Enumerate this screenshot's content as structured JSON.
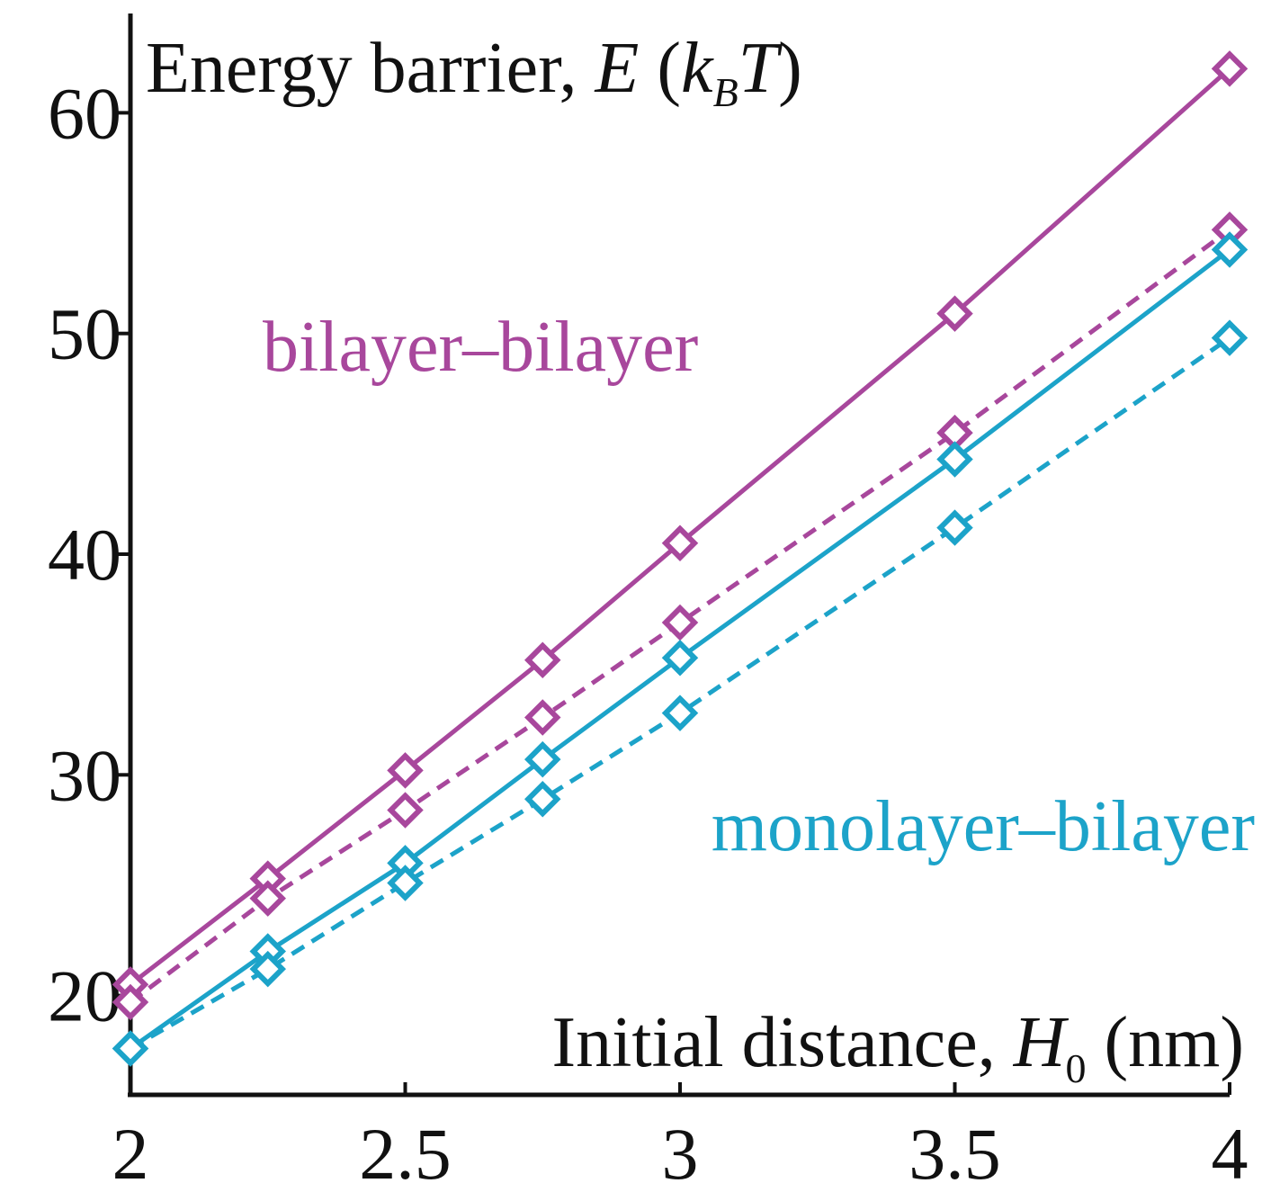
{
  "chart_data": {
    "type": "line",
    "title": "",
    "ylabel": {
      "prefix": "Energy barrier, ",
      "var": "E",
      "open": " (",
      "k": "k",
      "sub": "B",
      "T": "T",
      "close": ")"
    },
    "xlabel": {
      "prefix": "Initial distance, ",
      "var": "H",
      "sub": "0",
      "unit": " (nm)"
    },
    "xlim": [
      2,
      4
    ],
    "ylim": [
      15.5,
      64.5
    ],
    "x_ticks": [
      2,
      2.5,
      3,
      3.5,
      4
    ],
    "x_tick_labels": [
      "2",
      "2.5",
      "3",
      "3.5",
      "4"
    ],
    "y_ticks": [
      20,
      30,
      40,
      50,
      60
    ],
    "y_tick_labels": [
      "20",
      "30",
      "40",
      "50",
      "60"
    ],
    "x": [
      2,
      2.25,
      2.5,
      2.75,
      3,
      3.5,
      4
    ],
    "series": [
      {
        "name": "bilayer–bilayer (solid)",
        "group": "bilayer–bilayer",
        "color": "#a8479c",
        "dashed": false,
        "values": [
          20.5,
          25.3,
          30.2,
          35.2,
          40.5,
          50.9,
          62.0
        ]
      },
      {
        "name": "bilayer–bilayer (dashed)",
        "group": "bilayer–bilayer",
        "color": "#a8479c",
        "dashed": true,
        "values": [
          19.7,
          24.4,
          28.4,
          32.6,
          36.9,
          45.5,
          54.7
        ]
      },
      {
        "name": "monolayer–bilayer (solid)",
        "group": "monolayer–bilayer",
        "color": "#1ca3c9",
        "dashed": false,
        "values": [
          17.6,
          22.0,
          26.0,
          30.7,
          35.3,
          44.3,
          53.8
        ]
      },
      {
        "name": "monolayer–bilayer (dashed)",
        "group": "monolayer–bilayer",
        "color": "#1ca3c9",
        "dashed": true,
        "values": [
          17.6,
          21.2,
          25.1,
          28.9,
          32.8,
          41.2,
          49.8
        ]
      }
    ],
    "annotations": [
      {
        "text": "bilayer–bilayer",
        "color": "#a8479c"
      },
      {
        "text": "monolayer–bilayer",
        "color": "#1ca3c9"
      }
    ],
    "grid": false,
    "legend": "none"
  }
}
